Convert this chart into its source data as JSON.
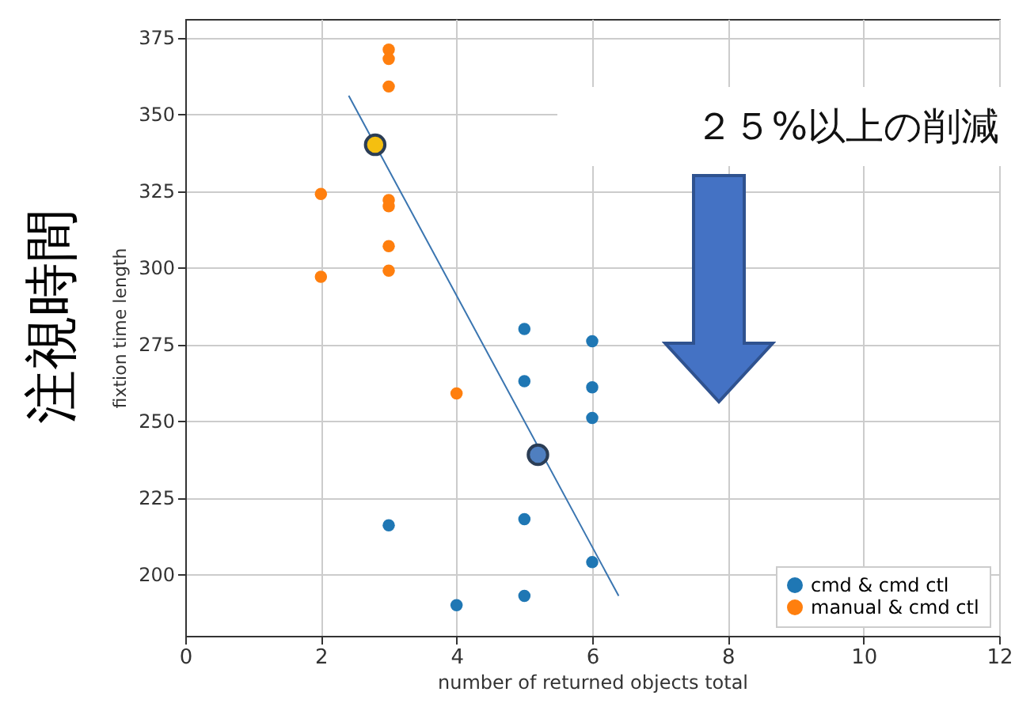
{
  "chart_data": {
    "type": "scatter",
    "xlabel": "number of returned objects total",
    "ylabel": "fixtion time length",
    "xlim": [
      0,
      12
    ],
    "xticks": [
      0,
      2,
      4,
      6,
      8,
      10,
      12
    ],
    "ylim": [
      180,
      381
    ],
    "yticks": [
      200,
      225,
      250,
      275,
      300,
      325,
      350,
      375
    ],
    "grid": true,
    "legend": "bottom right",
    "marker": "circle",
    "annotations": [
      "２５%以上の削減",
      "注視時間"
    ],
    "series": [
      {
        "name": "cmd & cmd ctl",
        "color": "#1f77b4",
        "x": [
          5,
          6,
          5,
          6,
          6,
          3,
          5,
          6,
          4,
          5
        ],
        "values": [
          280,
          276,
          263,
          261,
          251,
          216,
          218,
          204,
          190,
          193
        ]
      },
      {
        "name": "manual & cmd ctl",
        "color": "#ff7f0e",
        "x": [
          3,
          3,
          3,
          2,
          3,
          3,
          3,
          3,
          2,
          4
        ],
        "values": [
          371,
          368,
          359,
          324,
          322,
          320,
          307,
          299,
          297,
          259
        ]
      },
      {
        "type": "line",
        "marker": "none",
        "color": "#3a75b0",
        "x": [
          2.41,
          6.39
        ],
        "values": [
          356,
          193
        ]
      },
      {
        "color": "#f5bf10",
        "x": [
          2.8
        ],
        "values": [
          340
        ]
      },
      {
        "color": "#4f7fc0",
        "x": [
          5.2
        ],
        "values": [
          239
        ]
      }
    ]
  }
}
